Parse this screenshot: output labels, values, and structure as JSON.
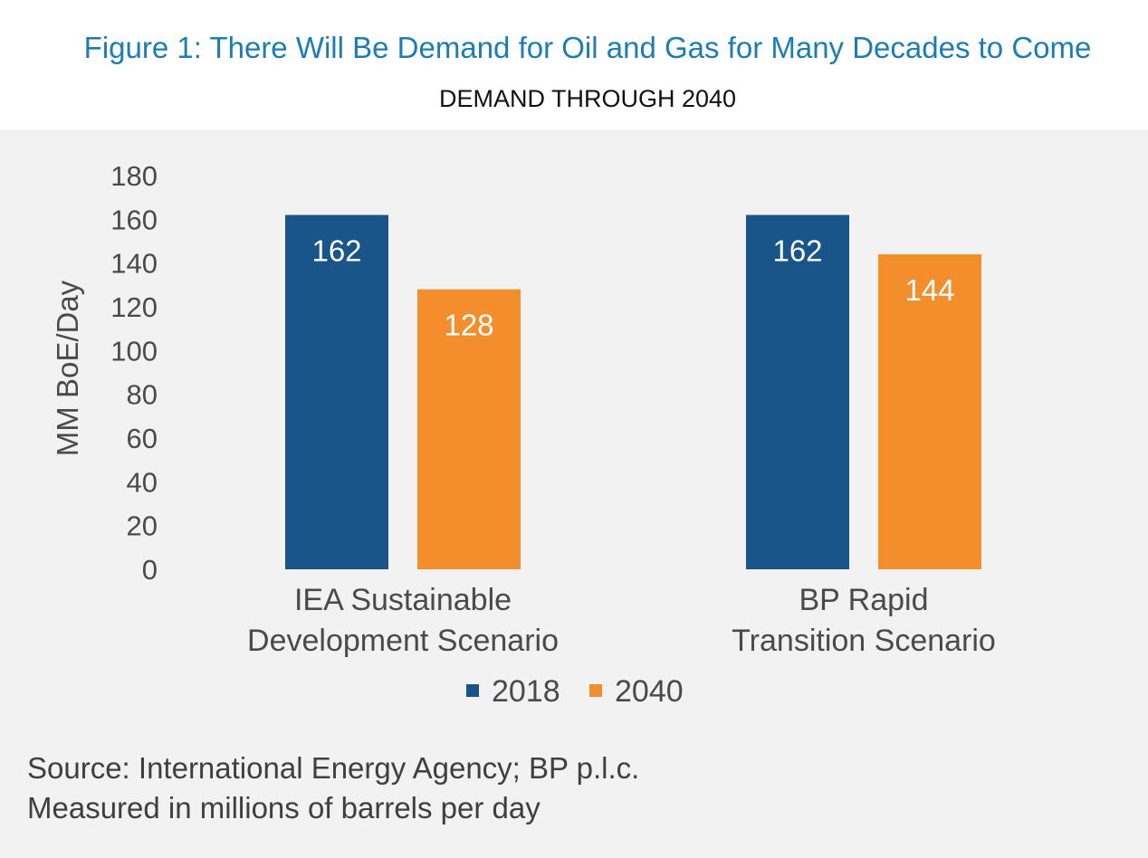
{
  "figure_title": "Figure 1: There Will Be Demand for Oil and Gas for Many Decades to Come",
  "subtitle": "DEMAND THROUGH 2040",
  "source_lines": [
    "Source: International Energy Agency; BP p.l.c.",
    "Measured in millions of barrels per day"
  ],
  "colors": {
    "title": "#1c7db5",
    "series_2018": "#1a5589",
    "series_2040": "#f28e2b",
    "panel": "#f2f2f2"
  },
  "chart_data": {
    "type": "bar",
    "ylabel": "MM BoE/Day",
    "ylim": [
      0,
      180
    ],
    "yticks": [
      0,
      20,
      40,
      60,
      80,
      100,
      120,
      140,
      160,
      180
    ],
    "grid": false,
    "legend_position": "bottom",
    "categories": [
      [
        "IEA Sustainable",
        "Development Scenario"
      ],
      [
        "BP Rapid",
        "Transition Scenario"
      ]
    ],
    "series": [
      {
        "name": "2018",
        "values": [
          162,
          162
        ],
        "color": "#1a5589",
        "labels": [
          "162",
          "162"
        ]
      },
      {
        "name": "2040",
        "values": [
          128,
          144
        ],
        "color": "#f28e2b",
        "labels": [
          "128",
          "144"
        ]
      }
    ]
  }
}
